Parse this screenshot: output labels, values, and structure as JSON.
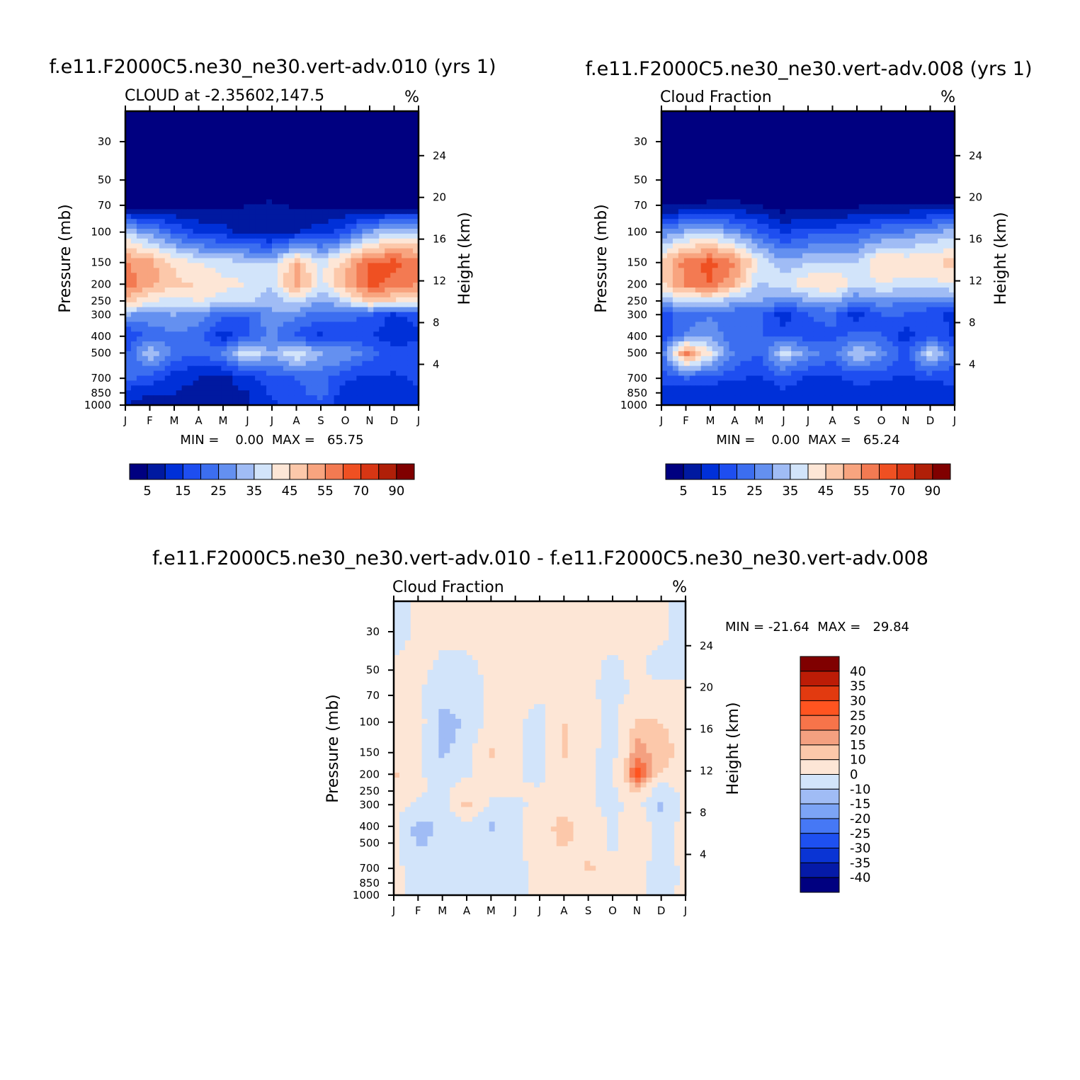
{
  "chart_data": [
    {
      "type": "heatmap",
      "id": "p1",
      "title": "f.e11.F2000C5.ne30_ne30.vert-adv.010 (yrs 1)",
      "subtitle": "CLOUD at -2.35602,147.5",
      "units": "%",
      "xlabel": "",
      "ylabel": "Pressure (mb)",
      "y2label": "Height (km)",
      "x_ticks": [
        "J",
        "F",
        "M",
        "A",
        "M",
        "J",
        "J",
        "A",
        "S",
        "O",
        "N",
        "D",
        "J"
      ],
      "y_ticks": [
        30,
        50,
        70,
        100,
        150,
        200,
        250,
        300,
        400,
        500,
        700,
        850,
        1000
      ],
      "y2_ticks": [
        24,
        20,
        16,
        12,
        8,
        4
      ],
      "ylim": [
        1000,
        20
      ],
      "minmax_text": "MIN =    0.00  MAX =   65.75",
      "min": 0.0,
      "max": 65.75,
      "field": [
        [
          0,
          0,
          0,
          0,
          0,
          0,
          0,
          0,
          0,
          0,
          0,
          0,
          0
        ],
        [
          0,
          0,
          0,
          0,
          0,
          0,
          0,
          0,
          0,
          0,
          0,
          0,
          0
        ],
        [
          2,
          1,
          3,
          4,
          4,
          5,
          6,
          4,
          3,
          4,
          3,
          2,
          2
        ],
        [
          35,
          28,
          20,
          14,
          12,
          8,
          6,
          10,
          13,
          18,
          30,
          34,
          36
        ],
        [
          55,
          52,
          44,
          40,
          37,
          36,
          35,
          50,
          38,
          48,
          60,
          62,
          58
        ],
        [
          58,
          52,
          46,
          45,
          42,
          40,
          35,
          54,
          38,
          50,
          62,
          58,
          55
        ],
        [
          50,
          40,
          38,
          40,
          37,
          36,
          30,
          38,
          30,
          36,
          48,
          44,
          42
        ],
        [
          30,
          28,
          30,
          28,
          22,
          20,
          30,
          26,
          22,
          22,
          20,
          14,
          18
        ],
        [
          14,
          22,
          24,
          22,
          12,
          20,
          26,
          18,
          14,
          16,
          16,
          10,
          14
        ],
        [
          20,
          34,
          24,
          20,
          26,
          40,
          30,
          40,
          30,
          30,
          22,
          18,
          20
        ],
        [
          22,
          18,
          12,
          10,
          8,
          14,
          18,
          20,
          22,
          16,
          14,
          14,
          16
        ],
        [
          12,
          10,
          10,
          8,
          6,
          10,
          16,
          18,
          22,
          12,
          12,
          12,
          14
        ],
        [
          10,
          8,
          10,
          8,
          8,
          10,
          14,
          16,
          18,
          12,
          12,
          12,
          14
        ]
      ]
    },
    {
      "type": "heatmap",
      "id": "p2",
      "title": "f.e11.F2000C5.ne30_ne30.vert-adv.008 (yrs 1)",
      "subtitle": "Cloud Fraction",
      "units": "%",
      "xlabel": "",
      "ylabel": "Pressure (mb)",
      "y2label": "Height (km)",
      "x_ticks": [
        "J",
        "F",
        "M",
        "A",
        "M",
        "J",
        "J",
        "A",
        "S",
        "O",
        "N",
        "D",
        "J"
      ],
      "y_ticks": [
        30,
        50,
        70,
        100,
        150,
        200,
        250,
        300,
        400,
        500,
        700,
        850,
        1000
      ],
      "y2_ticks": [
        24,
        20,
        16,
        12,
        8,
        4
      ],
      "ylim": [
        1000,
        20
      ],
      "minmax_text": "MIN =    0.00  MAX =   65.24",
      "min": 0.0,
      "max": 65.24,
      "field": [
        [
          0,
          0,
          0,
          0,
          0,
          0,
          0,
          0,
          0,
          0,
          0,
          0,
          0
        ],
        [
          0,
          0,
          0,
          0,
          0,
          0,
          0,
          0,
          0,
          0,
          0,
          0,
          0
        ],
        [
          4,
          4,
          6,
          6,
          5,
          2,
          4,
          3,
          4,
          5,
          5,
          5,
          4
        ],
        [
          26,
          32,
          34,
          28,
          20,
          14,
          18,
          18,
          20,
          24,
          26,
          30,
          32
        ],
        [
          46,
          58,
          62,
          56,
          40,
          32,
          34,
          36,
          36,
          46,
          44,
          44,
          48
        ],
        [
          44,
          56,
          60,
          50,
          34,
          38,
          44,
          46,
          36,
          40,
          38,
          38,
          40
        ],
        [
          32,
          36,
          38,
          30,
          30,
          26,
          30,
          32,
          26,
          28,
          26,
          26,
          26
        ],
        [
          18,
          22,
          24,
          22,
          22,
          12,
          20,
          22,
          12,
          20,
          20,
          16,
          14
        ],
        [
          16,
          26,
          30,
          20,
          20,
          18,
          18,
          18,
          22,
          20,
          12,
          18,
          14
        ],
        [
          22,
          58,
          40,
          24,
          20,
          38,
          28,
          22,
          36,
          28,
          18,
          38,
          22
        ],
        [
          16,
          20,
          18,
          16,
          14,
          18,
          14,
          14,
          16,
          16,
          14,
          16,
          16
        ],
        [
          12,
          12,
          10,
          10,
          10,
          14,
          12,
          12,
          14,
          12,
          12,
          12,
          14
        ],
        [
          10,
          10,
          10,
          10,
          10,
          12,
          10,
          10,
          12,
          10,
          10,
          10,
          12
        ]
      ]
    },
    {
      "type": "heatmap",
      "id": "p3",
      "title": "f.e11.F2000C5.ne30_ne30.vert-adv.010 - f.e11.F2000C5.ne30_ne30.vert-adv.008",
      "subtitle": "Cloud Fraction",
      "units": "%",
      "xlabel": "",
      "ylabel": "Pressure (mb)",
      "y2label": "Height (km)",
      "x_ticks": [
        "J",
        "F",
        "M",
        "A",
        "M",
        "J",
        "J",
        "A",
        "S",
        "O",
        "N",
        "D",
        "J"
      ],
      "y_ticks": [
        30,
        50,
        70,
        100,
        150,
        200,
        250,
        300,
        400,
        500,
        700,
        850,
        1000
      ],
      "y2_ticks": [
        24,
        20,
        16,
        12,
        8,
        4
      ],
      "ylim": [
        1000,
        20
      ],
      "minmax_text": "MIN = -21.64  MAX =   29.84",
      "min": -21.64,
      "max": 29.84,
      "field": [
        [
          -2,
          1,
          1,
          1,
          1,
          1,
          1,
          1,
          1,
          1,
          1,
          1,
          -2
        ],
        [
          1,
          1,
          -1,
          -1,
          1,
          1,
          1,
          1,
          1,
          -1,
          1,
          -2,
          -2
        ],
        [
          1,
          1,
          -4,
          -4,
          1,
          1,
          1,
          1,
          1,
          -2,
          1,
          3,
          3
        ],
        [
          8,
          6,
          -16,
          -8,
          4,
          2,
          -3,
          10,
          4,
          -3,
          12,
          10,
          8
        ],
        [
          6,
          2,
          -12,
          -4,
          12,
          1,
          -3,
          12,
          2,
          -3,
          18,
          12,
          8
        ],
        [
          12,
          2,
          -6,
          -2,
          6,
          1,
          -3,
          6,
          1,
          -2,
          28,
          10,
          6
        ],
        [
          4,
          2,
          -3,
          6,
          1,
          1,
          1,
          4,
          1,
          -2,
          12,
          -8,
          4
        ],
        [
          4,
          -2,
          -3,
          12,
          -1,
          -1,
          1,
          6,
          2,
          -3,
          4,
          -12,
          4
        ],
        [
          2,
          -14,
          -8,
          -2,
          -12,
          -2,
          6,
          14,
          6,
          -2,
          8,
          -6,
          4
        ],
        [
          2,
          -12,
          -6,
          -2,
          -4,
          -2,
          4,
          12,
          4,
          -2,
          10,
          -6,
          4
        ],
        [
          2,
          -2,
          -3,
          -2,
          -3,
          -2,
          2,
          2,
          12,
          2,
          2,
          -4,
          2
        ],
        [
          1,
          -1,
          -1,
          -1,
          -1,
          -1,
          1,
          1,
          4,
          1,
          1,
          -2,
          1
        ],
        [
          1,
          -1,
          -1,
          -1,
          -1,
          -1,
          1,
          1,
          1,
          1,
          1,
          -1,
          1
        ]
      ]
    }
  ],
  "colorbar_top": {
    "colors": [
      "#000080",
      "#0019a0",
      "#0030d8",
      "#1e4ef0",
      "#3c6ef0",
      "#6490f0",
      "#a0bcf5",
      "#d2e4fa",
      "#fde6d6",
      "#fcc8aa",
      "#f8a47f",
      "#f37a52",
      "#ef5022",
      "#d83614",
      "#b01f08",
      "#800000"
    ],
    "labels": [
      "5",
      "15",
      "25",
      "35",
      "45",
      "55",
      "70",
      "90"
    ]
  },
  "colorbar_diff": {
    "colors": [
      "#800000",
      "#bc1c06",
      "#e23a10",
      "#ff5420",
      "#f7744a",
      "#f4a080",
      "#fcc8aa",
      "#fde6d6",
      "#d2e4fa",
      "#a0bcf5",
      "#7ca4f5",
      "#4678f5",
      "#1e50f0",
      "#0a34d4",
      "#051aa8",
      "#000080"
    ],
    "labels": [
      "40",
      "35",
      "30",
      "25",
      "20",
      "15",
      "10",
      "0",
      "-10",
      "-15",
      "-20",
      "-25",
      "-30",
      "-35",
      "-40"
    ]
  }
}
